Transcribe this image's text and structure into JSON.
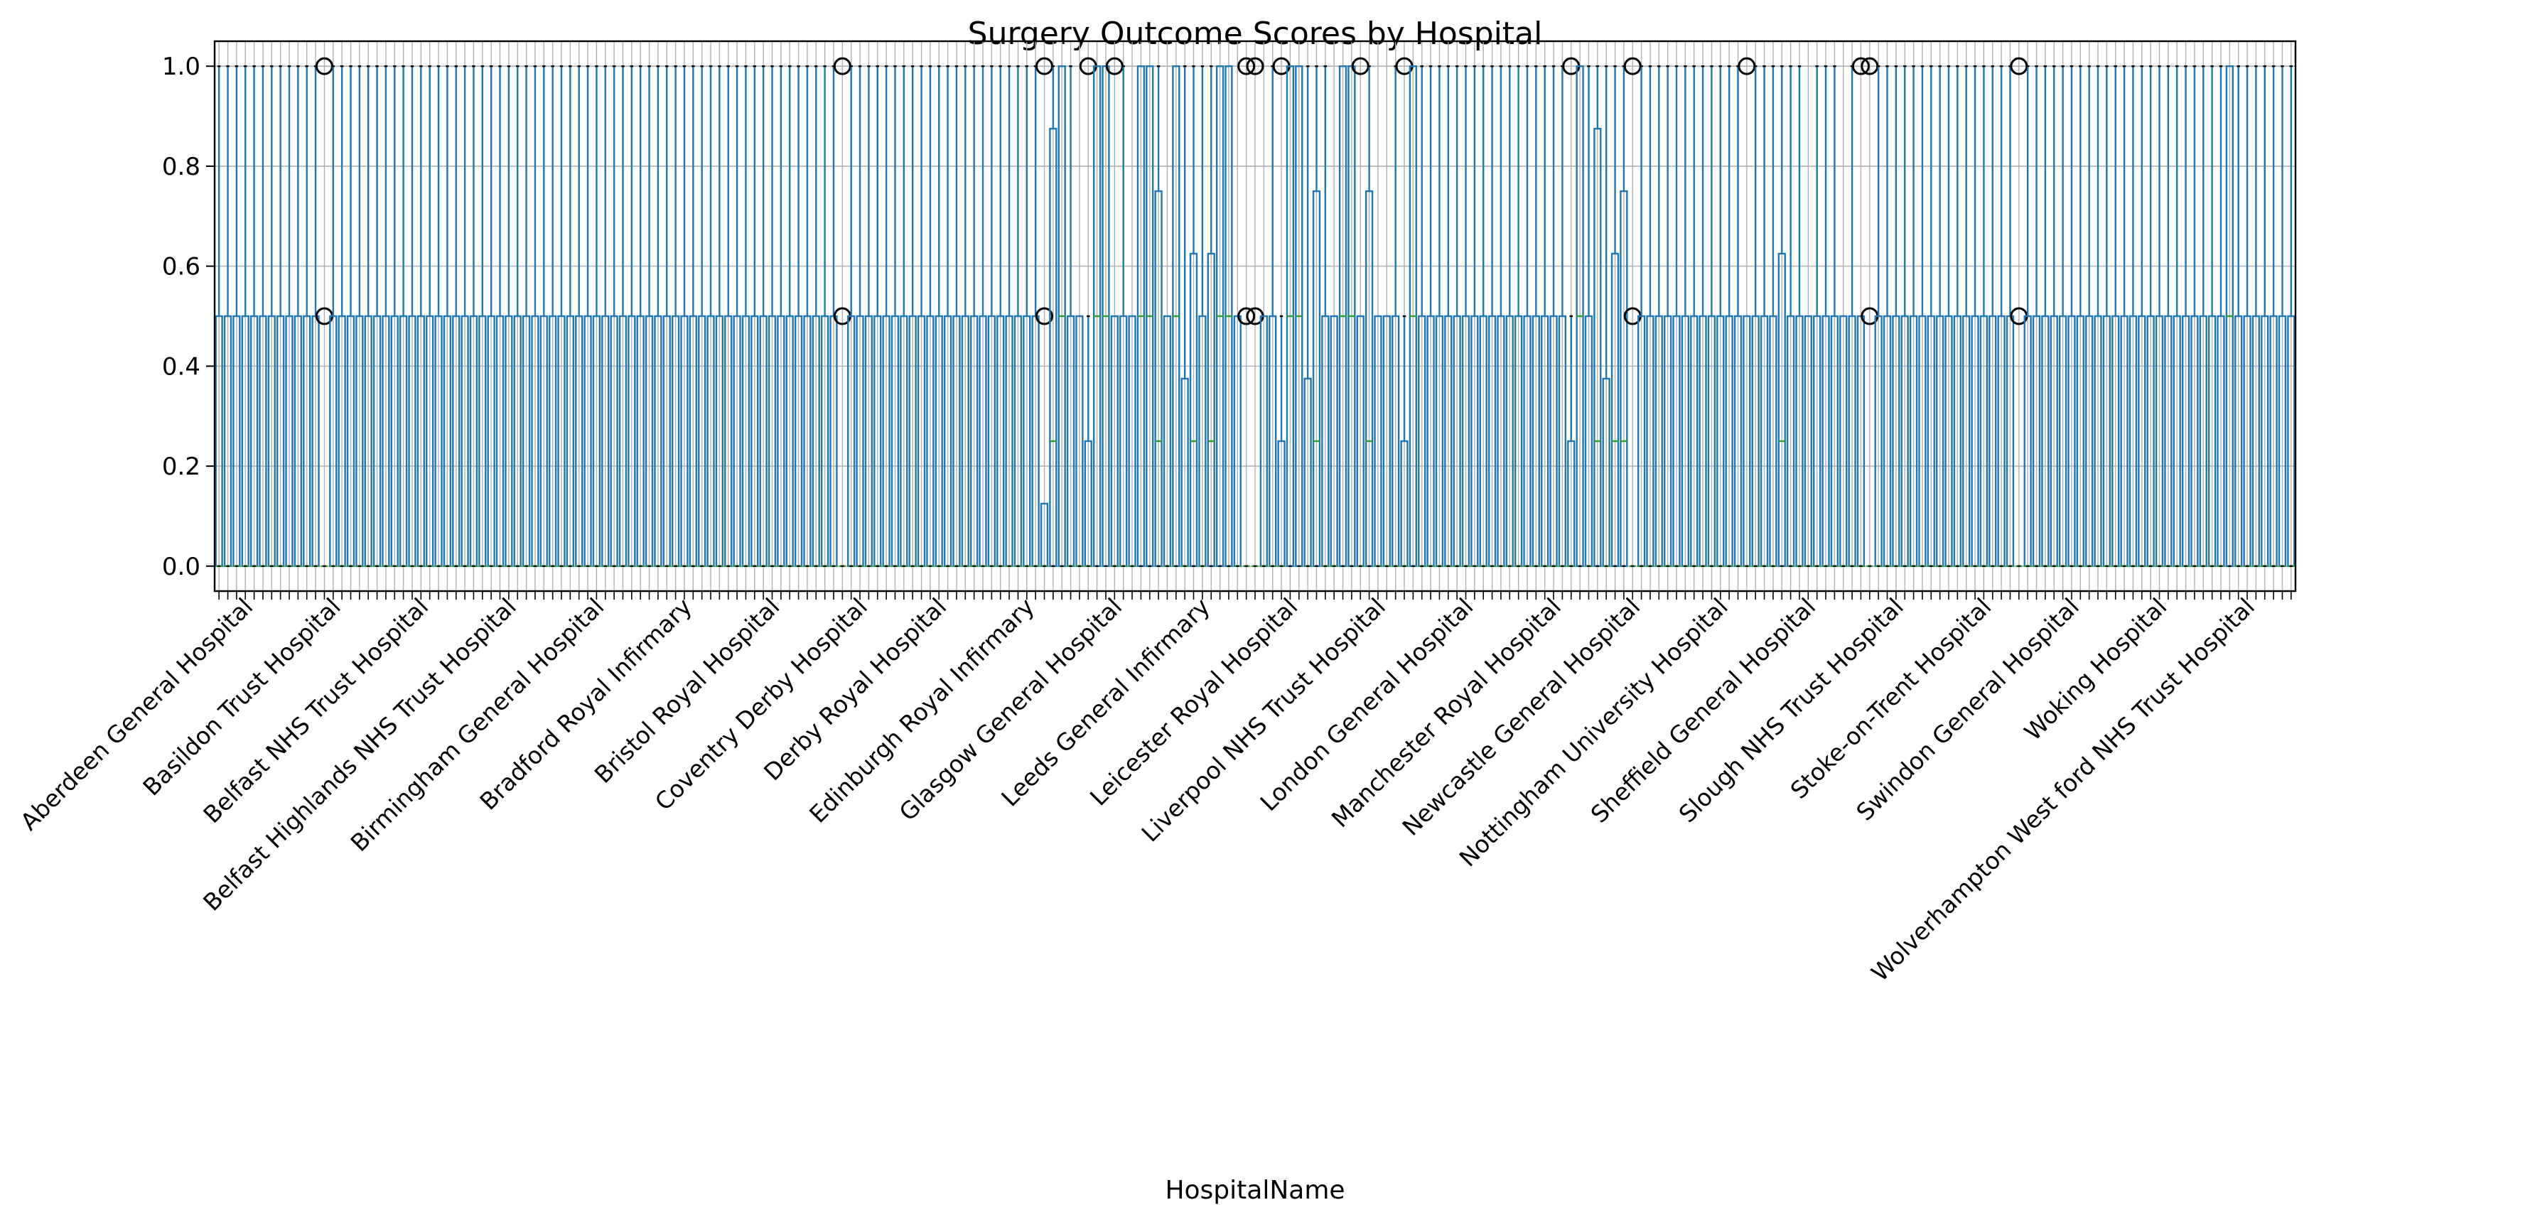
{
  "chart_data": {
    "type": "boxplot",
    "title": "Surgery Outcome Scores by Hospital",
    "xlabel": "HospitalName",
    "ylabel": "",
    "ylim": [
      -0.05,
      1.05
    ],
    "yticks": [
      0.0,
      0.2,
      0.4,
      0.6,
      0.8,
      1.0
    ],
    "ytick_labels": [
      "0.0",
      "0.2",
      "0.4",
      "0.6",
      "0.8",
      "1.0"
    ],
    "grid": true,
    "legend": "none",
    "box_color": "#1f77b4",
    "median_color": "#2ca02c",
    "category_count": 237,
    "visible_category_labels": [
      "Aberdeen General Hospital",
      "Basildon Trust Hospital",
      "Belfast NHS Trust Hospital",
      "Belfast Highlands NHS Trust Hospital",
      "Birmingham General Hospital",
      "Bradford Royal Infirmary",
      "Bristol Royal Hospital",
      "Coventry Derby Hospital",
      "Derby Royal Hospital",
      "Edinburgh Royal Infirmary",
      "Glasgow General Hospital",
      "Leeds General Infirmary",
      "Leicester Royal Hospital",
      "Liverpool NHS Trust Hospital",
      "London General Hospital",
      "Manchester Royal Hospital",
      "Newcastle General Hospital",
      "Nottingham University Hospital",
      "Sheffield General Hospital",
      "Slough NHS Trust Hospital",
      "Stoke-on-Trent Hospital",
      "Swindon General Hospital",
      "Woking Hospital",
      "Wolverhampton West ford NHS Trust Hospital"
    ],
    "typical_box": {
      "min": 0.0,
      "q1": 0.0,
      "median": 0.0,
      "q3": 0.5,
      "max": 1.0
    },
    "box_variants": [
      {
        "kind": "A",
        "q1": 0.0,
        "median": 0.0,
        "q3": 0.5,
        "max": 1.0,
        "outliers": []
      },
      {
        "kind": "B",
        "q1": 0.0,
        "median": 0.0,
        "q3": 0.0,
        "max": 0.0,
        "outliers": [
          0.5,
          1.0
        ]
      },
      {
        "kind": "C",
        "q1": 0.0,
        "median": 0.5,
        "q3": 1.0,
        "max": 1.0,
        "outliers": []
      },
      {
        "kind": "D",
        "q1": 0.0,
        "median": 0.0,
        "q3": 0.5,
        "max": 0.5,
        "outliers": [
          1.0
        ]
      },
      {
        "kind": "E",
        "q1": 0.0,
        "median": 0.0,
        "q3": 0.125,
        "max": 0.125,
        "outliers": [
          0.5,
          1.0
        ]
      },
      {
        "kind": "F",
        "q1": 0.0,
        "median": 0.25,
        "q3": 0.875,
        "max": 1.0,
        "outliers": []
      },
      {
        "kind": "G",
        "q1": 0.0,
        "median": 0.0,
        "q3": 0.25,
        "max": 0.5,
        "outliers": [
          1.0
        ]
      },
      {
        "kind": "H",
        "q1": 0.0,
        "median": 0.25,
        "q3": 0.75,
        "max": 1.0,
        "outliers": []
      },
      {
        "kind": "I",
        "q1": 0.0,
        "median": 0.25,
        "q3": 0.625,
        "max": 1.0,
        "outliers": []
      },
      {
        "kind": "J",
        "q1": 0.0,
        "median": 0.0,
        "q3": 0.375,
        "max": 1.0,
        "outliers": []
      },
      {
        "kind": "K",
        "q1": 0.0,
        "median": 0.0,
        "q3": 0.5,
        "max": 0.5,
        "outliers": []
      }
    ],
    "box_sequence": "AAAAAAAAAAAA BAAAAAAAAAAAAAAAAAAAAAAAAAAAAAAAAAAAAAAAAAAAAAAAAAAAAAAAAAA BAAAAAAAAAAAAAAAAAAAAAA EFCAKGCCDAKCCHKCJIAICCKBBKAGCCJHAKCCDHKKAGCAAAAAAAAAAAAAAAAAGCAFJIHBAAAAAAAAAAAADAAAIAAKAAAKADBAAAAAAAAAAAAAAAA BAAAAAAAAAAAAAAAAAAAAAAACAAAAAAAAAAAAAAAAAAAAAAAAAAAAAAAAAAAAAAA"
  }
}
